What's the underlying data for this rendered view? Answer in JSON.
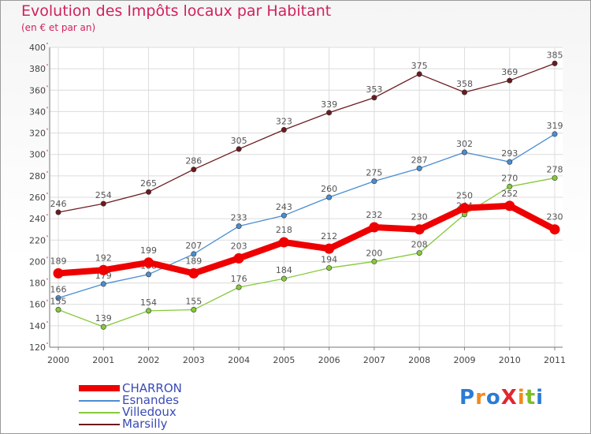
{
  "title": "Evolution des Impôts locaux par Habitant",
  "subtitle": "(en € et par an)",
  "logo": "ProXiti",
  "chart_data": {
    "type": "line",
    "title": "Evolution des Impôts locaux par Habitant",
    "subtitle": "(en € et par an)",
    "xlabel": "",
    "ylabel": "",
    "x": [
      "2000",
      "2001",
      "2002",
      "2003",
      "2004",
      "2005",
      "2006",
      "2007",
      "2008",
      "2009",
      "2010",
      "2011"
    ],
    "ylim": [
      120,
      400
    ],
    "yticks": [
      120,
      140,
      160,
      180,
      200,
      220,
      240,
      260,
      280,
      300,
      320,
      340,
      360,
      380,
      400
    ],
    "grid": true,
    "legend": "bottom-left",
    "series": [
      {
        "name": "Marsilly",
        "color": "#6b1a1f",
        "values": [
          246,
          254,
          265,
          286,
          305,
          323,
          339,
          353,
          375,
          358,
          369,
          385
        ]
      },
      {
        "name": "Esnandes",
        "color": "#4a8ed1",
        "values": [
          166,
          179,
          188,
          207,
          233,
          243,
          260,
          275,
          287,
          302,
          293,
          319
        ]
      },
      {
        "name": "Villedoux",
        "color": "#86c93b",
        "values": [
          155,
          139,
          154,
          155,
          176,
          184,
          194,
          200,
          208,
          244,
          270,
          278
        ]
      },
      {
        "name": "CHARRON",
        "color": "#ef0000",
        "values": [
          189,
          192,
          199,
          189,
          203,
          218,
          212,
          232,
          230,
          250,
          252,
          230
        ]
      }
    ],
    "legend_order": [
      "CHARRON",
      "Esnandes",
      "Villedoux",
      "Marsilly"
    ]
  }
}
